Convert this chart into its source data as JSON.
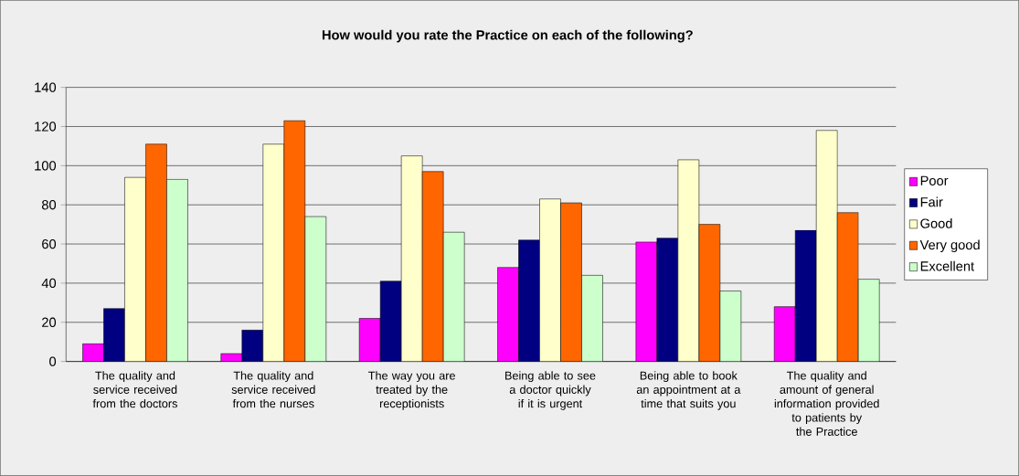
{
  "chart_data": {
    "type": "bar",
    "title": "How would you rate the Practice on each of the following?",
    "categories": [
      "The quality and service received from the doctors",
      "The quality and service received from the nurses",
      "The way you are treated by the receptionists",
      "Being able to see a doctor quickly if it is urgent",
      "Being able to book an appointment at a time that suits you",
      "The quality and amount of general information provided to patients by the Practice"
    ],
    "series": [
      {
        "name": "Poor",
        "color": "#ff00ff",
        "values": [
          9,
          4,
          22,
          48,
          61,
          28
        ]
      },
      {
        "name": "Fair",
        "color": "#000080",
        "values": [
          27,
          16,
          41,
          62,
          63,
          67
        ]
      },
      {
        "name": "Good",
        "color": "#ffffcc",
        "values": [
          94,
          111,
          105,
          83,
          103,
          118
        ]
      },
      {
        "name": "Very good",
        "color": "#ff6600",
        "values": [
          111,
          123,
          97,
          81,
          70,
          76
        ]
      },
      {
        "name": "Excellent",
        "color": "#ccffcc",
        "values": [
          93,
          74,
          66,
          44,
          36,
          42
        ]
      }
    ],
    "ylim": [
      0,
      140
    ],
    "yticks": [
      0,
      20,
      40,
      60,
      80,
      100,
      120,
      140
    ],
    "grid": "y",
    "legend": "right"
  }
}
